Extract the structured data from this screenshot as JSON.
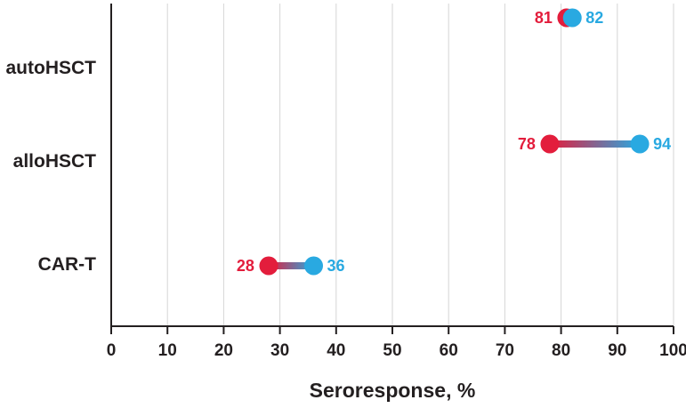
{
  "chart_data": {
    "type": "dumbbell",
    "xlabel": "Seroresponse, %",
    "ylabel": "",
    "xlim": [
      0,
      100
    ],
    "xticks": [
      "0",
      "10",
      "20",
      "30",
      "40",
      "50",
      "60",
      "70",
      "80",
      "90",
      "100"
    ],
    "grid": "vertical",
    "categories": [
      "autoHSCT",
      "alloHSCT",
      "CAR-T"
    ],
    "series": [
      {
        "name": "",
        "color": "#e31d3c",
        "values": [
          81,
          78,
          28
        ]
      },
      {
        "name": "",
        "color": "#29a9e1",
        "values": [
          82,
          94,
          36
        ]
      }
    ]
  }
}
